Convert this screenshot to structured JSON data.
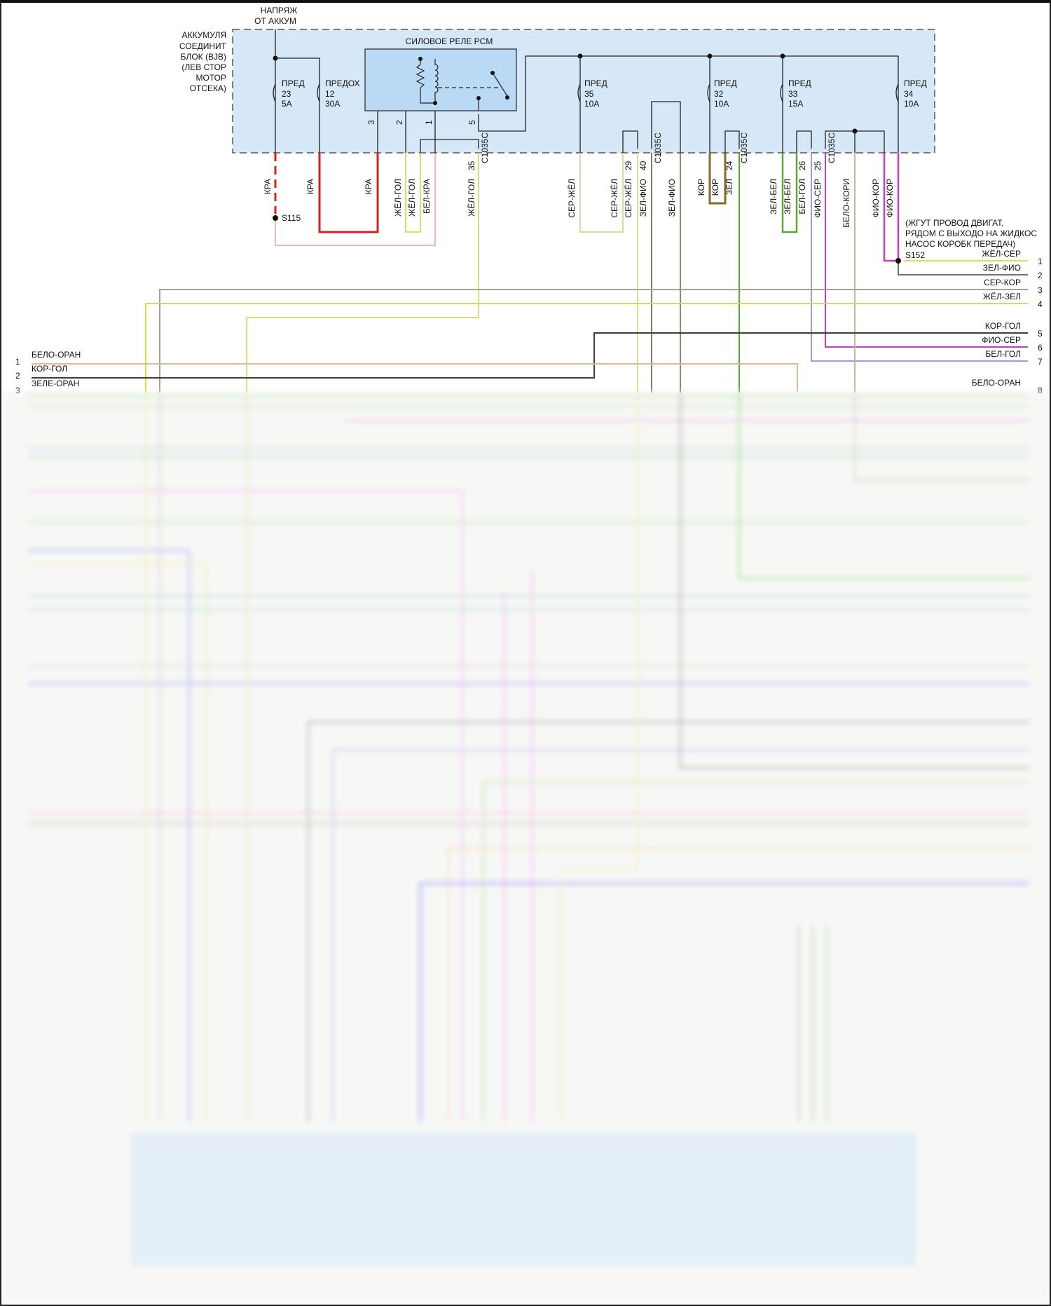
{
  "battery_feed": {
    "line1": "НАПРЯЖ",
    "line2": "ОТ АККУМ"
  },
  "bjb_label": [
    "АККУМУЛЯ",
    "СОЕДИНИТ",
    "БЛОК (BJB)",
    "(ЛЕВ СТОР",
    "МОТОР",
    "ОТСЕКА)"
  ],
  "relay": {
    "title": "СИЛОВОЕ РЕЛЕ PCM",
    "pins": [
      "3",
      "2",
      "1",
      "5"
    ]
  },
  "fuses": [
    {
      "name": "ПРЕД",
      "num": "23",
      "rating": "5A"
    },
    {
      "name": "ПРЕДОХ",
      "num": "12",
      "rating": "30A"
    },
    {
      "name": "ПРЕД",
      "num": "35",
      "rating": "10A"
    },
    {
      "name": "ПРЕД",
      "num": "32",
      "rating": "10A"
    },
    {
      "name": "ПРЕД",
      "num": "33",
      "rating": "15A"
    },
    {
      "name": "ПРЕД",
      "num": "34",
      "rating": "10A"
    }
  ],
  "wire_labels": [
    "КРА",
    "КРА",
    "КРА",
    "ЖЁЛ-ГОЛ",
    "ЖЁЛ-ГОЛ",
    "БЕЛ-КРА",
    "ЖЁЛ-ГОЛ",
    "C1035C",
    "СЕР-ЖЁЛ",
    "СЕР-ЖЁЛ",
    "СЕР-ЖЁЛ",
    "ЗЕЛ-ФИО",
    "C1035C",
    "ЗЕЛ-ФИО",
    "КОР",
    "КОР",
    "ЗЕЛ",
    "C1035C",
    "ЗЕЛ-БЕЛ",
    "ЗЕЛ-БЕЛ",
    "БЕЛ-ГОЛ",
    "ФИО-СЕР",
    "C1035C",
    "БЕЛО-КОРИ",
    "ФИО-КОР",
    "ФИО-КОР"
  ],
  "pin_numbers": [
    "35",
    "29",
    "40",
    "24",
    "26",
    "25"
  ],
  "splices": {
    "s115": "S115",
    "s152": "S152"
  },
  "harness_note": [
    "(ЖГУТ ПРОВОД ДВИГАТ,",
    "РЯДОМ С ВЫХОДО НА ЖИДКОС",
    "НАСОС КОРОБК ПЕРЕДАЧ)"
  ],
  "right_connector": [
    {
      "num": "1",
      "color": "ЖЁЛ-СЕР"
    },
    {
      "num": "2",
      "color": "ЗЕЛ-ФИО"
    },
    {
      "num": "3",
      "color": "СЕР-КОР"
    },
    {
      "num": "4",
      "color": "ЖЁЛ-ЗЕЛ"
    },
    {
      "num": "5",
      "color": "КОР-ГОЛ"
    },
    {
      "num": "6",
      "color": "ФИО-СЕР"
    },
    {
      "num": "7",
      "color": "БЕЛ-ГОЛ"
    },
    {
      "num": "8",
      "color": "БЕЛО-ОРАН"
    }
  ],
  "left_connector": [
    {
      "num": "1",
      "color": "БЕЛО-ОРАН"
    },
    {
      "num": "2",
      "color": "КОР-ГОЛ"
    },
    {
      "num": "3",
      "color": "ЗЕЛЕ-ОРАН"
    }
  ],
  "colors": {
    "module_fill": "#d6e8f8",
    "relay_fill": "#b9d9f5",
    "red": "#d42020",
    "yellow": "#e6e87a",
    "green": "#5aa832",
    "magenta": "#c63cc6",
    "blue": "#7a7ae0",
    "brown": "#8a6a20",
    "tan": "#c8b89a"
  }
}
